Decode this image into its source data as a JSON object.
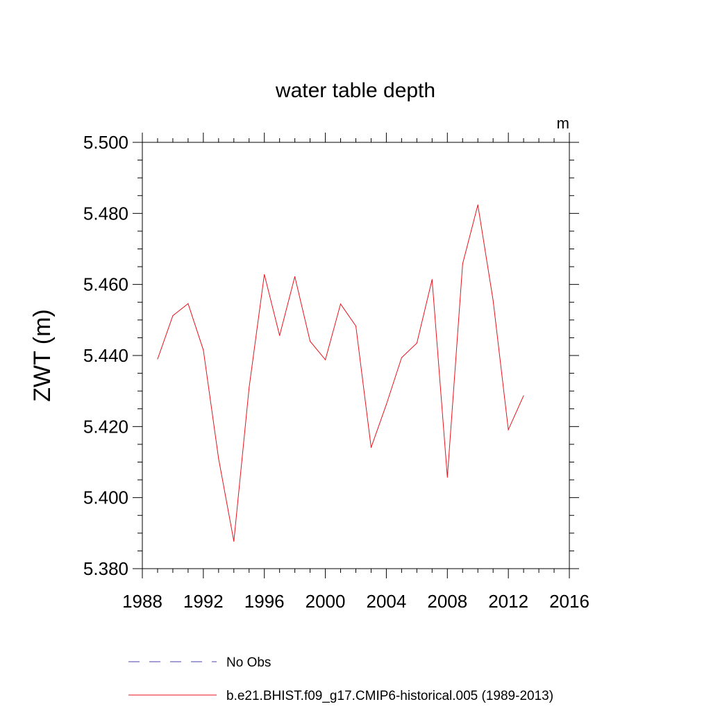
{
  "chart_data": {
    "type": "line",
    "title": "water table depth",
    "units": "m",
    "ylabel": "ZWT  (m)",
    "xlabel": "",
    "xlim": [
      1988,
      2016
    ],
    "ylim": [
      5.38,
      5.5
    ],
    "xticks": [
      "1988",
      "1992",
      "1996",
      "2000",
      "2004",
      "2008",
      "2012",
      "2016"
    ],
    "yticks": [
      "5.380",
      "5.400",
      "5.420",
      "5.440",
      "5.460",
      "5.480",
      "5.500"
    ],
    "grid": false,
    "legend_position": "bottom",
    "series": [
      {
        "name": "No Obs",
        "color": "#4a3fb0",
        "dash": "dashed",
        "x": [],
        "y": []
      },
      {
        "name": "b.e21.BHIST.f09_g17.CMIP6-historical.005 (1989-2013)",
        "color": "#e8121b",
        "dash": "solid",
        "x": [
          1989,
          1990,
          1991,
          1992,
          1993,
          1994,
          1995,
          1996,
          1997,
          1998,
          1999,
          2000,
          2001,
          2002,
          2003,
          2004,
          2005,
          2006,
          2007,
          2008,
          2009,
          2010,
          2011,
          2012,
          2013
        ],
        "y": [
          5.439,
          5.4512,
          5.4546,
          5.4415,
          5.411,
          5.3877,
          5.431,
          5.4628,
          5.4456,
          5.4622,
          5.444,
          5.4388,
          5.4545,
          5.4483,
          5.4141,
          5.4262,
          5.4394,
          5.4435,
          5.4614,
          5.4057,
          5.4658,
          5.4824,
          5.4555,
          5.4191,
          5.4287
        ]
      }
    ]
  }
}
